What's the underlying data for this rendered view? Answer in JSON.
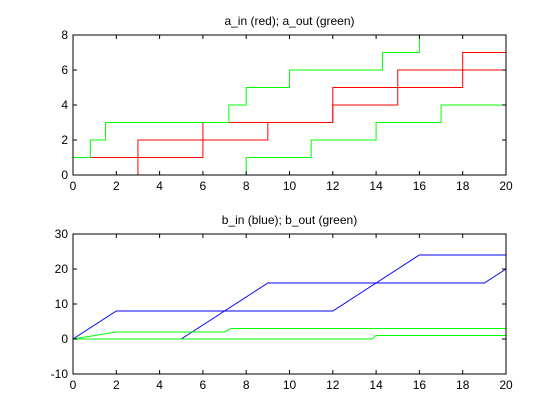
{
  "chart_data": [
    {
      "type": "line",
      "title": "a_in (red); a_out (green)",
      "xlim": [
        0,
        20
      ],
      "ylim": [
        0,
        8
      ],
      "xticks": [
        0,
        2,
        4,
        6,
        8,
        10,
        12,
        14,
        16,
        18,
        20
      ],
      "yticks": [
        0,
        2,
        4,
        6,
        8
      ],
      "grid": false,
      "series": [
        {
          "color": "#ff0000",
          "points": [
            [
              3,
              0
            ],
            [
              3,
              2
            ],
            [
              9,
              2
            ],
            [
              9,
              3
            ],
            [
              12,
              3
            ],
            [
              12,
              5
            ],
            [
              18,
              5
            ],
            [
              18,
              7
            ],
            [
              20,
              7
            ]
          ]
        },
        {
          "color": "#ff0000",
          "points": [
            [
              0,
              1
            ],
            [
              6,
              1
            ],
            [
              6,
              3
            ],
            [
              12,
              3
            ],
            [
              12,
              4
            ],
            [
              15,
              4
            ],
            [
              15,
              6
            ],
            [
              20,
              6
            ]
          ]
        },
        {
          "color": "#00ff00",
          "points": [
            [
              0,
              1
            ],
            [
              0.8,
              1
            ],
            [
              0.8,
              2
            ],
            [
              1.5,
              2
            ],
            [
              1.5,
              3
            ],
            [
              7.2,
              3
            ],
            [
              7.2,
              4
            ],
            [
              8,
              4
            ],
            [
              8,
              5
            ],
            [
              10,
              5
            ],
            [
              10,
              6
            ],
            [
              14.3,
              6
            ],
            [
              14.3,
              7
            ],
            [
              16,
              7
            ],
            [
              16,
              8
            ]
          ]
        },
        {
          "color": "#00ff00",
          "points": [
            [
              8,
              0
            ],
            [
              8,
              1
            ],
            [
              11,
              1
            ],
            [
              11,
              2
            ],
            [
              14,
              2
            ],
            [
              14,
              3
            ],
            [
              17,
              3
            ],
            [
              17,
              4
            ],
            [
              20,
              4
            ]
          ]
        }
      ]
    },
    {
      "type": "line",
      "title": "b_in (blue); b_out (green)",
      "xlim": [
        0,
        20
      ],
      "ylim": [
        -10,
        30
      ],
      "xticks": [
        0,
        2,
        4,
        6,
        8,
        10,
        12,
        14,
        16,
        18,
        20
      ],
      "yticks": [
        -10,
        0,
        10,
        20,
        30
      ],
      "grid": false,
      "series": [
        {
          "color": "#0000ff",
          "points": [
            [
              0,
              0
            ],
            [
              2,
              8
            ],
            [
              12,
              8
            ],
            [
              16,
              24
            ],
            [
              20,
              24
            ]
          ]
        },
        {
          "color": "#0000ff",
          "points": [
            [
              5,
              0
            ],
            [
              9,
              16
            ],
            [
              19,
              16
            ],
            [
              20,
              20
            ]
          ]
        },
        {
          "color": "#00ff00",
          "points": [
            [
              0,
              0
            ],
            [
              2,
              2
            ],
            [
              7,
              2
            ],
            [
              7.3,
              3
            ],
            [
              20,
              3
            ]
          ]
        },
        {
          "color": "#00ff00",
          "points": [
            [
              0,
              0
            ],
            [
              13.8,
              0
            ],
            [
              14,
              1
            ],
            [
              20,
              1
            ]
          ]
        }
      ]
    }
  ]
}
